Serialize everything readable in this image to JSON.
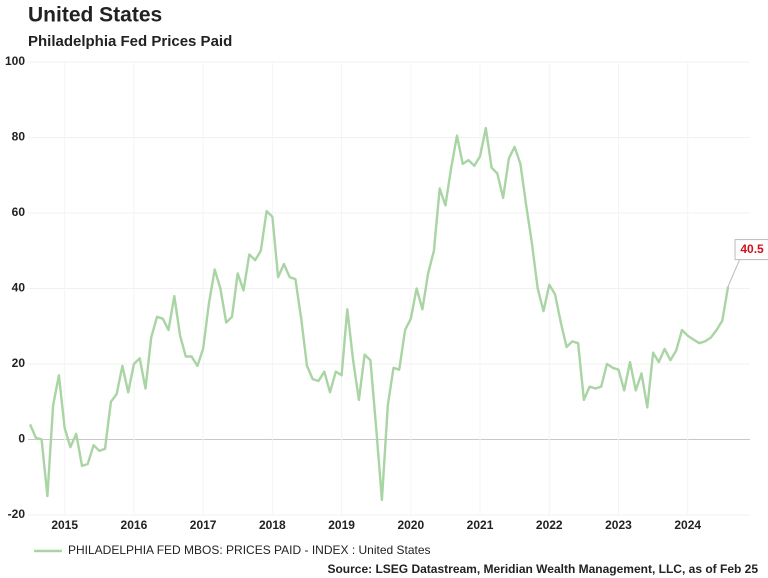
{
  "chart_data": {
    "type": "line",
    "title": "United States",
    "subtitle": "Philadelphia Fed Prices Paid",
    "source": "Source: LSEG Datastream, Meridian Wealth Management, LLC, as of Feb 25",
    "x": [
      2015,
      2015.083,
      2015.167,
      2015.25,
      2015.333,
      2015.417,
      2015.5,
      2015.583,
      2015.667,
      2015.75,
      2015.833,
      2015.917,
      2016,
      2016.083,
      2016.167,
      2016.25,
      2016.333,
      2016.417,
      2016.5,
      2016.583,
      2016.667,
      2016.75,
      2016.833,
      2016.917,
      2017,
      2017.083,
      2017.167,
      2017.25,
      2017.333,
      2017.417,
      2017.5,
      2017.583,
      2017.667,
      2017.75,
      2017.833,
      2017.917,
      2018,
      2018.083,
      2018.167,
      2018.25,
      2018.333,
      2018.417,
      2018.5,
      2018.583,
      2018.667,
      2018.75,
      2018.833,
      2018.917,
      2019,
      2019.083,
      2019.167,
      2019.25,
      2019.333,
      2019.417,
      2019.5,
      2019.583,
      2019.667,
      2019.75,
      2019.833,
      2019.917,
      2020,
      2020.083,
      2020.167,
      2020.25,
      2020.333,
      2020.417,
      2020.5,
      2020.583,
      2020.667,
      2020.75,
      2020.833,
      2020.917,
      2021,
      2021.083,
      2021.167,
      2021.25,
      2021.333,
      2021.417,
      2021.5,
      2021.583,
      2021.667,
      2021.75,
      2021.833,
      2021.917,
      2022,
      2022.083,
      2022.167,
      2022.25,
      2022.333,
      2022.417,
      2022.5,
      2022.583,
      2022.667,
      2022.75,
      2022.833,
      2022.917,
      2023,
      2023.083,
      2023.167,
      2023.25,
      2023.333,
      2023.417,
      2023.5,
      2023.583,
      2023.667,
      2023.75,
      2023.833,
      2023.917,
      2024,
      2024.083,
      2024.167,
      2024.25,
      2024.333,
      2024.417,
      2024.5,
      2024.583,
      2024.667,
      2024.75,
      2024.833,
      2024.917,
      2025,
      2025.083
    ],
    "series": [
      {
        "name": "PHILADELPHIA FED MBOS: PRICES PAID - INDEX : United States",
        "color": "#a9d4a3",
        "values": [
          4,
          0.5,
          0,
          -15,
          9,
          17,
          3,
          -2,
          1.5,
          -7,
          -6.5,
          -1.5,
          -3,
          -2.5,
          10,
          12,
          19.5,
          12.5,
          20,
          21.5,
          13.5,
          27,
          32.5,
          32,
          29,
          38,
          27.5,
          22,
          22,
          19.5,
          24,
          36,
          45,
          40,
          31,
          32.5,
          44,
          39.5,
          49,
          47.5,
          50,
          60.5,
          59,
          43,
          46.5,
          43,
          42.5,
          32,
          19.5,
          16,
          15.5,
          18,
          12.5,
          18,
          17,
          34.5,
          21,
          10.5,
          22.5,
          21,
          3,
          -16,
          9,
          19,
          18.5,
          29,
          32,
          40,
          34.5,
          44,
          50,
          66.5,
          62,
          72,
          80.5,
          73,
          74,
          72.5,
          75,
          82.5,
          72,
          70.5,
          64,
          74.5,
          77.5,
          73,
          62,
          52,
          40,
          34,
          41,
          38.5,
          31,
          24.5,
          26,
          25.5,
          10.5,
          14,
          13.5,
          14,
          20,
          19,
          18.5,
          13,
          20.5,
          13,
          17.5,
          8.5,
          23,
          20.5,
          24,
          21,
          23.5,
          29,
          27.5,
          26.5,
          25.5,
          26,
          27,
          29,
          31.5,
          40.5
        ]
      }
    ],
    "xlim": [
      2014.97,
      2025.4
    ],
    "xticks": [
      {
        "value": 2015.5,
        "label": "2015"
      },
      {
        "value": 2016.5,
        "label": "2016"
      },
      {
        "value": 2017.5,
        "label": "2017"
      },
      {
        "value": 2018.5,
        "label": "2018"
      },
      {
        "value": 2019.5,
        "label": "2019"
      },
      {
        "value": 2020.5,
        "label": "2020"
      },
      {
        "value": 2021.5,
        "label": "2021"
      },
      {
        "value": 2022.5,
        "label": "2022"
      },
      {
        "value": 2023.5,
        "label": "2023"
      },
      {
        "value": 2024.5,
        "label": "2024"
      }
    ],
    "ylim": [
      -20,
      100
    ],
    "yticks": [
      -20,
      0,
      20,
      40,
      60,
      80,
      100
    ],
    "grid": true
  }
}
